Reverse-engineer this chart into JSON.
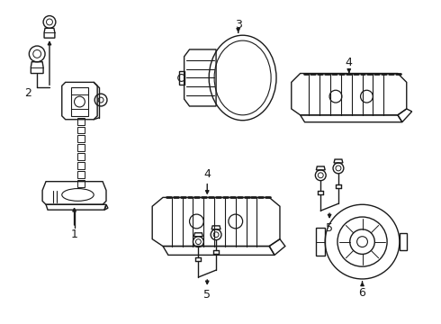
{
  "background_color": "#ffffff",
  "line_color": "#1a1a1a",
  "line_width": 1.0,
  "fig_width": 4.9,
  "fig_height": 3.6,
  "dpi": 100
}
